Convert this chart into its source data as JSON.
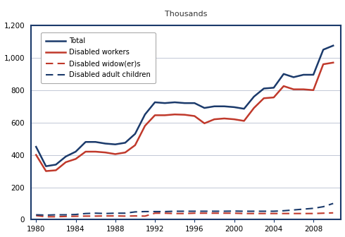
{
  "years": [
    1980,
    1981,
    1982,
    1983,
    1984,
    1985,
    1986,
    1987,
    1988,
    1989,
    1990,
    1991,
    1992,
    1993,
    1994,
    1995,
    1996,
    1997,
    1998,
    1999,
    2000,
    2001,
    2002,
    2003,
    2004,
    2005,
    2006,
    2007,
    2008,
    2009,
    2010
  ],
  "total": [
    450,
    330,
    340,
    390,
    420,
    480,
    480,
    470,
    465,
    475,
    530,
    650,
    725,
    720,
    725,
    720,
    720,
    690,
    700,
    700,
    695,
    685,
    760,
    810,
    815,
    900,
    880,
    895,
    895,
    1050,
    1075
  ],
  "disabled_workers": [
    400,
    300,
    305,
    355,
    375,
    420,
    420,
    415,
    405,
    415,
    460,
    580,
    645,
    645,
    650,
    648,
    640,
    595,
    620,
    625,
    620,
    610,
    690,
    750,
    755,
    825,
    805,
    805,
    800,
    960,
    970
  ],
  "disabled_widows": [
    25,
    18,
    18,
    20,
    21,
    22,
    22,
    23,
    23,
    22,
    23,
    22,
    40,
    40,
    38,
    38,
    40,
    40,
    40,
    40,
    40,
    38,
    38,
    38,
    38,
    38,
    38,
    38,
    38,
    40,
    42
  ],
  "disabled_adult_children": [
    30,
    28,
    30,
    30,
    32,
    38,
    40,
    38,
    40,
    40,
    48,
    50,
    50,
    50,
    52,
    52,
    52,
    52,
    52,
    52,
    53,
    52,
    52,
    52,
    52,
    55,
    60,
    65,
    70,
    80,
    100
  ],
  "total_color": "#1b3a6b",
  "workers_color": "#c0392b",
  "widows_color": "#c0392b",
  "adult_children_color": "#1b3a6b",
  "border_color": "#1b3a6b",
  "ylim": [
    0,
    1200
  ],
  "yticks": [
    0,
    200,
    400,
    600,
    800,
    1000,
    1200
  ],
  "xticks": [
    1980,
    1984,
    1988,
    1992,
    1996,
    2000,
    2004,
    2008
  ],
  "xlim": [
    1979.5,
    2010.8
  ],
  "ylabel": "Thousands",
  "legend_labels": [
    "Total",
    "Disabled workers",
    "Disabled widow(er)s",
    "Disabled adult children"
  ],
  "background_color": "#ffffff",
  "grid_color": "#b8bfd0"
}
